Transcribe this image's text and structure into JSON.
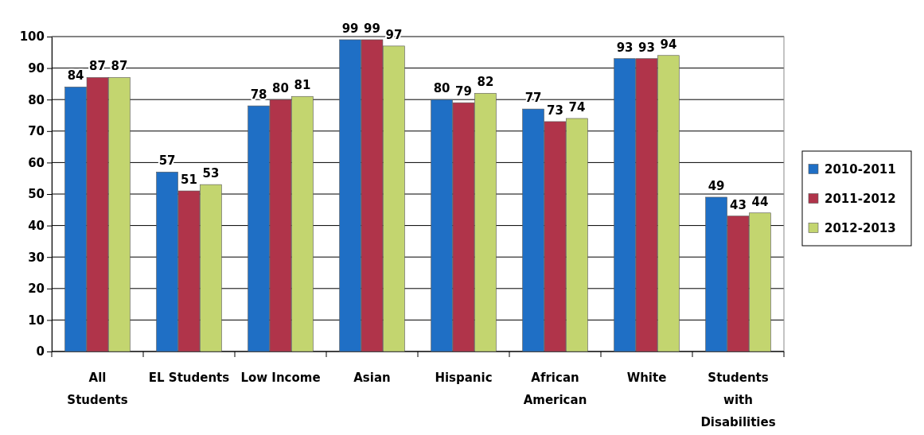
{
  "chart_data": {
    "type": "bar",
    "categories": [
      "All Students",
      "EL Students",
      "Low Income",
      "Asian",
      "Hispanic",
      "African American",
      "White",
      "Students with Disabilities"
    ],
    "series": [
      {
        "name": "2010-2011",
        "color": "#1f6fc5",
        "values": [
          84,
          57,
          78,
          99,
          80,
          77,
          93,
          49
        ]
      },
      {
        "name": "2011-2012",
        "color": "#b0344a",
        "values": [
          87,
          51,
          80,
          99,
          79,
          73,
          93,
          43
        ]
      },
      {
        "name": "2012-2013",
        "color": "#c3d56f",
        "values": [
          87,
          53,
          81,
          97,
          82,
          74,
          94,
          44
        ]
      }
    ],
    "ylim": [
      0,
      100
    ],
    "yticks": [
      0,
      10,
      20,
      30,
      40,
      50,
      60,
      70,
      80,
      90,
      100
    ],
    "grid": "y",
    "legend": "right",
    "data_labels": true
  }
}
